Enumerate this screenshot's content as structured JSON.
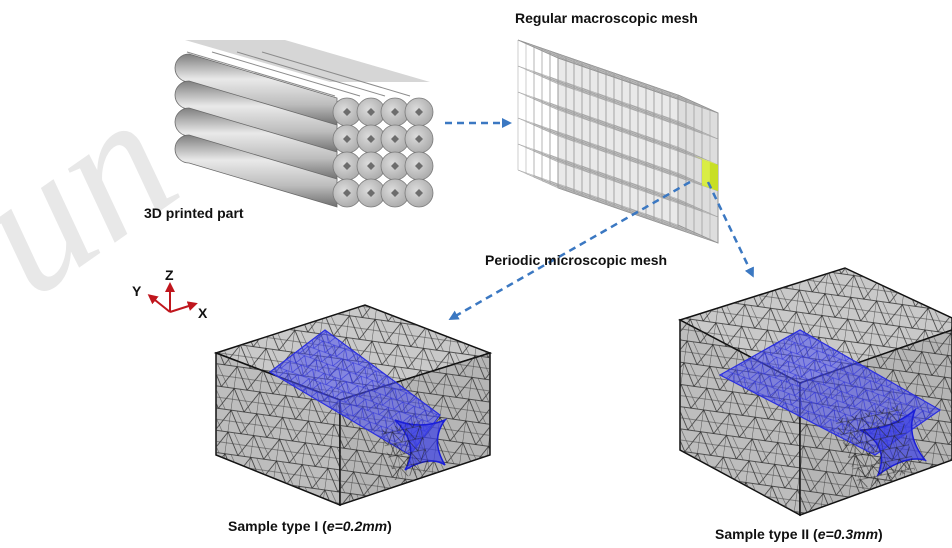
{
  "labels": {
    "regular_mesh": "Regular macroscopic mesh",
    "printed_part": "3D printed part",
    "periodic_mesh": "Periodic microscopic mesh",
    "sample1_prefix": "Sample type I (",
    "sample1_param": "e=0.2mm",
    "sample1_suffix": ")",
    "sample2_prefix": "Sample type II (",
    "sample2_param": "e=0.3mm",
    "sample2_suffix": ")"
  },
  "axes": {
    "z": "Z",
    "y": "Y",
    "x": "X"
  },
  "watermark": "un",
  "colors": {
    "arrow": "#3b78c2",
    "axis": "#c0161d",
    "fiber_mesh": "#3a3ee6",
    "highlight_cell": "#d8f02a",
    "grid": "#9a9a9a",
    "mesh_face": "#c8c8c8"
  }
}
